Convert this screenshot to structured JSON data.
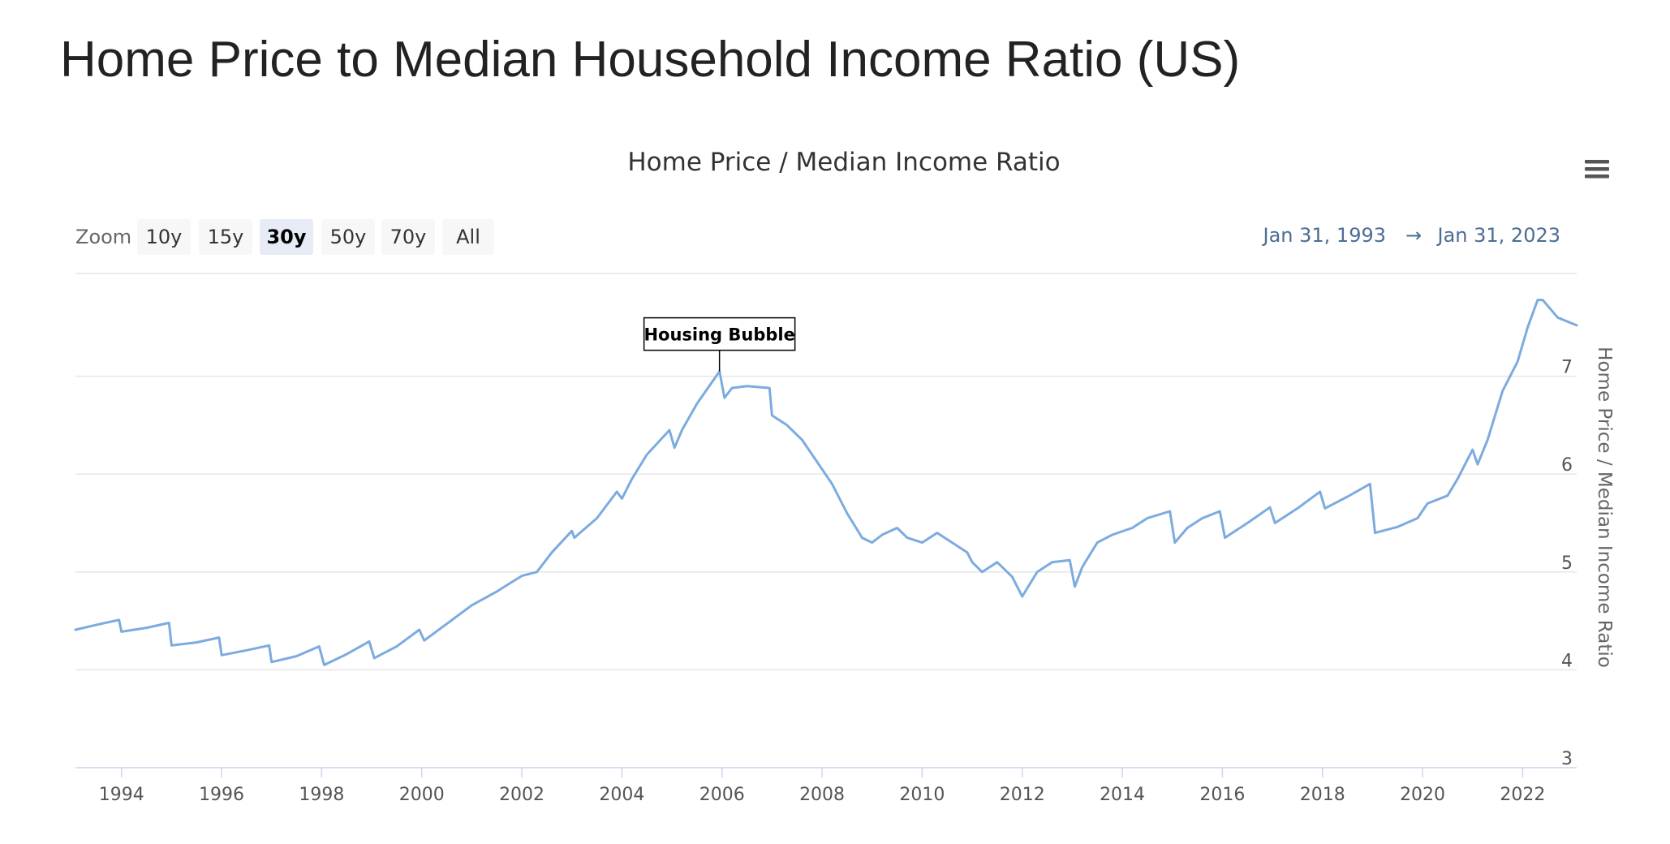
{
  "page": {
    "title": "Home Price to Median Household Income Ratio (US)"
  },
  "toolbar": {
    "zoom_label": "Zoom",
    "zoom_buttons": [
      {
        "label": "10y",
        "active": false
      },
      {
        "label": "15y",
        "active": false
      },
      {
        "label": "30y",
        "active": true
      },
      {
        "label": "50y",
        "active": false
      },
      {
        "label": "70y",
        "active": false
      },
      {
        "label": "All",
        "active": false
      }
    ],
    "range_from": "Jan 31, 1993",
    "range_arrow": "→",
    "range_to": "Jan 31, 2023",
    "menu_icon": "hamburger-menu-icon"
  },
  "annotation": {
    "label": "Housing Bubble",
    "x": 2005.95,
    "y": 7.05
  },
  "colors": {
    "series": "#7cabdf",
    "grid": "#e6e6e6",
    "range_text": "#4c6d94",
    "zoom_active": "#e6ebf5"
  },
  "chart_data": {
    "type": "line",
    "title": "Home Price / Median Income Ratio",
    "ylabel": "Home Price / Median Income Ratio",
    "xlabel": "",
    "xlim": [
      1993.08,
      2023.08
    ],
    "ylim": [
      3,
      8
    ],
    "x_ticks": [
      1994,
      1996,
      1998,
      2000,
      2002,
      2004,
      2006,
      2008,
      2010,
      2012,
      2014,
      2016,
      2018,
      2020,
      2022
    ],
    "y_ticks": [
      3,
      4,
      5,
      6,
      7
    ],
    "grid": true,
    "y_axis_position": "right",
    "legend": "none",
    "series": [
      {
        "color": "#7cabdf",
        "points": [
          [
            1993.08,
            4.41
          ],
          [
            1993.5,
            4.46
          ],
          [
            1993.95,
            4.51
          ],
          [
            1994.0,
            4.39
          ],
          [
            1994.5,
            4.43
          ],
          [
            1994.95,
            4.48
          ],
          [
            1995.0,
            4.25
          ],
          [
            1995.5,
            4.28
          ],
          [
            1995.95,
            4.33
          ],
          [
            1996.0,
            4.15
          ],
          [
            1996.5,
            4.2
          ],
          [
            1996.95,
            4.25
          ],
          [
            1997.0,
            4.08
          ],
          [
            1997.5,
            4.14
          ],
          [
            1997.95,
            4.24
          ],
          [
            1998.05,
            4.05
          ],
          [
            1998.5,
            4.16
          ],
          [
            1998.95,
            4.29
          ],
          [
            1999.05,
            4.12
          ],
          [
            1999.5,
            4.24
          ],
          [
            1999.95,
            4.41
          ],
          [
            2000.05,
            4.3
          ],
          [
            2000.5,
            4.47
          ],
          [
            2001.0,
            4.66
          ],
          [
            2001.5,
            4.8
          ],
          [
            2002.0,
            4.96
          ],
          [
            2002.3,
            5.0
          ],
          [
            2002.6,
            5.2
          ],
          [
            2003.0,
            5.42
          ],
          [
            2003.05,
            5.35
          ],
          [
            2003.5,
            5.55
          ],
          [
            2003.9,
            5.82
          ],
          [
            2004.0,
            5.75
          ],
          [
            2004.2,
            5.95
          ],
          [
            2004.5,
            6.2
          ],
          [
            2004.95,
            6.45
          ],
          [
            2005.05,
            6.27
          ],
          [
            2005.2,
            6.45
          ],
          [
            2005.5,
            6.72
          ],
          [
            2005.95,
            7.05
          ],
          [
            2006.05,
            6.78
          ],
          [
            2006.2,
            6.88
          ],
          [
            2006.5,
            6.9
          ],
          [
            2006.95,
            6.88
          ],
          [
            2007.0,
            6.6
          ],
          [
            2007.3,
            6.5
          ],
          [
            2007.6,
            6.35
          ],
          [
            2008.0,
            6.05
          ],
          [
            2008.2,
            5.9
          ],
          [
            2008.5,
            5.6
          ],
          [
            2008.8,
            5.35
          ],
          [
            2009.0,
            5.3
          ],
          [
            2009.2,
            5.38
          ],
          [
            2009.5,
            5.45
          ],
          [
            2009.7,
            5.35
          ],
          [
            2010.0,
            5.3
          ],
          [
            2010.3,
            5.4
          ],
          [
            2010.6,
            5.3
          ],
          [
            2010.9,
            5.2
          ],
          [
            2011.0,
            5.1
          ],
          [
            2011.2,
            5.0
          ],
          [
            2011.5,
            5.1
          ],
          [
            2011.8,
            4.95
          ],
          [
            2012.0,
            4.75
          ],
          [
            2012.3,
            5.0
          ],
          [
            2012.6,
            5.1
          ],
          [
            2012.95,
            5.12
          ],
          [
            2013.05,
            4.85
          ],
          [
            2013.2,
            5.05
          ],
          [
            2013.5,
            5.3
          ],
          [
            2013.8,
            5.38
          ],
          [
            2014.2,
            5.45
          ],
          [
            2014.5,
            5.55
          ],
          [
            2014.95,
            5.62
          ],
          [
            2015.05,
            5.3
          ],
          [
            2015.3,
            5.45
          ],
          [
            2015.6,
            5.55
          ],
          [
            2015.95,
            5.62
          ],
          [
            2016.05,
            5.35
          ],
          [
            2016.5,
            5.5
          ],
          [
            2016.95,
            5.66
          ],
          [
            2017.05,
            5.5
          ],
          [
            2017.5,
            5.65
          ],
          [
            2017.95,
            5.82
          ],
          [
            2018.05,
            5.65
          ],
          [
            2018.5,
            5.77
          ],
          [
            2018.95,
            5.9
          ],
          [
            2019.05,
            5.4
          ],
          [
            2019.5,
            5.46
          ],
          [
            2019.9,
            5.55
          ],
          [
            2020.1,
            5.7
          ],
          [
            2020.5,
            5.78
          ],
          [
            2020.7,
            5.95
          ],
          [
            2021.0,
            6.25
          ],
          [
            2021.1,
            6.1
          ],
          [
            2021.3,
            6.35
          ],
          [
            2021.6,
            6.85
          ],
          [
            2021.9,
            7.15
          ],
          [
            2022.1,
            7.5
          ],
          [
            2022.3,
            7.78
          ],
          [
            2022.4,
            7.78
          ],
          [
            2022.7,
            7.6
          ],
          [
            2023.08,
            7.52
          ]
        ]
      }
    ]
  }
}
